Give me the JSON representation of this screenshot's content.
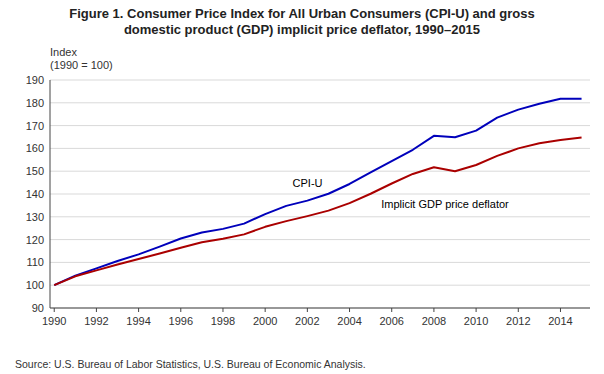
{
  "chart_data": {
    "type": "line",
    "title": "Figure 1. Consumer Price Index for All Urban Consumers (CPI-U) and gross\ndomestic product (GDP) implicit price deflator, 1990–2015",
    "ylabel": [
      "Index",
      "(1990 = 100)"
    ],
    "source": "Source: U.S. Bureau of Labor Statistics, U.S. Bureau of Economic Analysis.",
    "x": [
      1990,
      1991,
      1992,
      1993,
      1994,
      1995,
      1996,
      1997,
      1998,
      1999,
      2000,
      2001,
      2002,
      2003,
      2004,
      2005,
      2006,
      2007,
      2008,
      2009,
      2010,
      2011,
      2012,
      2013,
      2014,
      2015
    ],
    "series": [
      {
        "color": "#0000bb",
        "values": [
          100.0,
          104.2,
          107.4,
          110.6,
          113.5,
          116.9,
          120.5,
          123.1,
          124.7,
          127.0,
          131.2,
          134.8,
          137.1,
          140.1,
          144.4,
          149.5,
          154.4,
          159.4,
          165.5,
          164.9,
          167.8,
          173.5,
          177.0,
          179.6,
          181.8,
          181.8
        ]
      },
      {
        "color": "#aa0000",
        "values": [
          100.0,
          103.9,
          106.5,
          109.1,
          111.5,
          113.9,
          116.4,
          118.8,
          120.4,
          122.3,
          125.6,
          128.1,
          130.3,
          132.7,
          136.0,
          140.1,
          144.6,
          148.8,
          151.7,
          150.0,
          152.7,
          156.7,
          160.0,
          162.3,
          163.7,
          164.8
        ]
      }
    ],
    "annotations": [
      {
        "text": "CPI-U",
        "x": 2001.3,
        "y": 143
      },
      {
        "text": "Implicit GDP price deflator",
        "x": 2005.5,
        "y": 134
      }
    ],
    "xlim": [
      1989.8,
      2015.4
    ],
    "xticks": [
      1990,
      1992,
      1994,
      1996,
      1998,
      2000,
      2002,
      2004,
      2006,
      2008,
      2010,
      2012,
      2014
    ],
    "ylim": [
      90,
      190
    ],
    "yticks": [
      90,
      100,
      110,
      120,
      130,
      140,
      150,
      160,
      170,
      180,
      190
    ],
    "grid": true
  }
}
